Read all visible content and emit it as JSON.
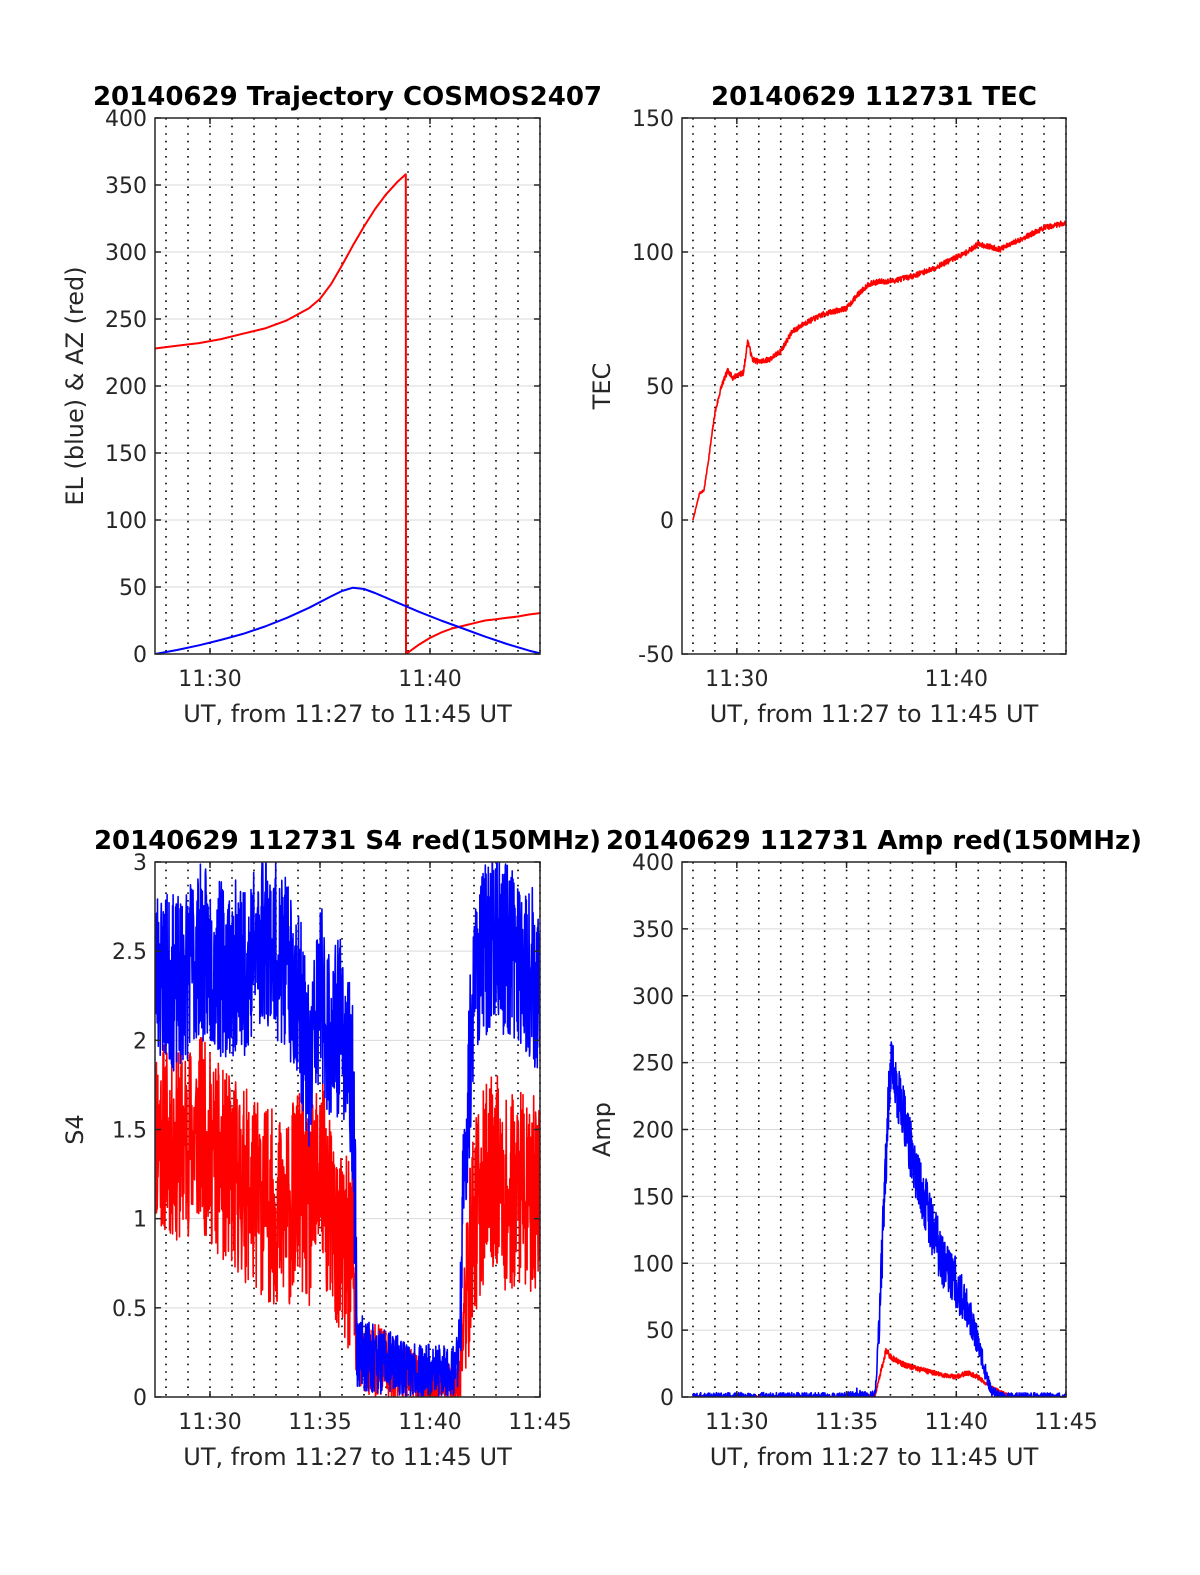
{
  "colors": {
    "red": "#ff0000",
    "blue": "#0000ff",
    "grid": "#d9d9d9",
    "axis": "#262626"
  },
  "chart_data": [
    {
      "id": "trajectory",
      "type": "line",
      "title": "20140629 Trajectory COSMOS2407",
      "xlabel": "UT, from 11:27 to 11:45 UT",
      "ylabel": "EL (blue) & AZ (red)",
      "xlim": [
        27.5,
        45
      ],
      "ylim": [
        0,
        400
      ],
      "yticks": [
        0,
        50,
        100,
        150,
        200,
        250,
        300,
        350,
        400
      ],
      "xticks": [
        {
          "v": 30,
          "label": "11:30"
        },
        {
          "v": 40,
          "label": "11:40"
        }
      ],
      "grid": true,
      "series": [
        {
          "color": "red",
          "x": [
            27.5,
            28.5,
            29.5,
            30.5,
            31.5,
            32.5,
            33.5,
            34.5,
            35.0,
            35.5,
            36.0,
            36.5,
            37.0,
            37.5,
            38.0,
            38.5,
            38.9,
            38.91,
            39.5,
            40.0,
            40.5,
            41.0,
            41.5,
            42.0,
            42.5,
            43.0,
            43.5,
            44.0,
            44.5,
            45.0
          ],
          "y": [
            228,
            230,
            232,
            235,
            239,
            243,
            249,
            258,
            265,
            276,
            290,
            305,
            319,
            332,
            343,
            352,
            358,
            0,
            7,
            12,
            16,
            19,
            21,
            23,
            25,
            26,
            27,
            28,
            29.5,
            30.5
          ]
        },
        {
          "color": "blue",
          "x": [
            27.5,
            28.5,
            29.5,
            30.5,
            31.5,
            32.5,
            33.5,
            34.5,
            35.5,
            36.0,
            36.5,
            37.0,
            37.5,
            38.5,
            39.5,
            40.5,
            41.5,
            42.5,
            43.5,
            44.5,
            45.0
          ],
          "y": [
            0,
            3,
            6.5,
            10.5,
            15,
            20.5,
            27,
            34.5,
            43,
            47,
            49.5,
            48.5,
            45.5,
            38.5,
            31.5,
            25,
            19,
            13,
            7.5,
            2.5,
            0.5
          ]
        }
      ]
    },
    {
      "id": "tec",
      "type": "line",
      "title": "20140629 112731 TEC",
      "xlabel": "UT, from 11:27 to 11:45 UT",
      "ylabel": "TEC",
      "xlim": [
        27.5,
        45
      ],
      "ylim": [
        -50,
        150
      ],
      "yticks": [
        -50,
        0,
        50,
        100,
        150
      ],
      "xticks": [
        {
          "v": 30,
          "label": "11:30"
        },
        {
          "v": 40,
          "label": "11:40"
        }
      ],
      "grid": true,
      "series": [
        {
          "color": "red",
          "noise": 1.0,
          "seed": 7,
          "x": [
            28.0,
            28.3,
            28.5,
            28.7,
            29.0,
            29.3,
            29.6,
            29.8,
            30.0,
            30.3,
            30.5,
            30.7,
            31.0,
            31.5,
            32.0,
            32.5,
            33.0,
            33.5,
            34.0,
            34.5,
            35.0,
            35.5,
            36.0,
            36.5,
            37.0,
            38.0,
            39.0,
            40.0,
            40.5,
            41.0,
            41.5,
            42.0,
            42.5,
            43.0,
            43.5,
            44.0,
            44.5,
            45.0
          ],
          "y": [
            0,
            10,
            11,
            22,
            40,
            50,
            56,
            53,
            54,
            55,
            67,
            60,
            59,
            60,
            63,
            70,
            73,
            75,
            77,
            78,
            79,
            84,
            88,
            89,
            89,
            91,
            94,
            98,
            100,
            103,
            102,
            101,
            103,
            105,
            107,
            109,
            110,
            111
          ]
        }
      ]
    },
    {
      "id": "s4",
      "type": "line",
      "title": "20140629 112731 S4 red(150MHz)",
      "xlabel": "UT, from 11:27 to 11:45 UT",
      "ylabel": "S4",
      "xlim": [
        27.5,
        45
      ],
      "ylim": [
        0,
        3
      ],
      "yticks": [
        0,
        0.5,
        1,
        1.5,
        2,
        2.5,
        3
      ],
      "ytick_labels": [
        "0",
        "0.5",
        "1",
        "1.5",
        "2",
        "2.5",
        "3"
      ],
      "xticks": [
        {
          "v": 30,
          "label": "11:30"
        },
        {
          "v": 35,
          "label": "11:35"
        },
        {
          "v": 40,
          "label": "11:40"
        },
        {
          "v": 45,
          "label": "11:45"
        }
      ],
      "grid": true,
      "series": [
        {
          "color": "red",
          "noise": 0.55,
          "seed": 11,
          "x": [
            27.5,
            28.5,
            29.5,
            30.5,
            31.5,
            32.5,
            33.5,
            34.0,
            34.5,
            35.0,
            35.5,
            36.0,
            36.5,
            36.7,
            37.0,
            37.5,
            38.0,
            38.5,
            39.0,
            39.5,
            40.0,
            40.5,
            41.0,
            41.3,
            41.6,
            42.0,
            42.5,
            43.0,
            43.5,
            44.0,
            44.5,
            45.0
          ],
          "y": [
            1.5,
            1.4,
            1.5,
            1.3,
            1.2,
            1.1,
            1.0,
            1.2,
            1.0,
            1.3,
            1.0,
            0.8,
            0.8,
            0.2,
            0.2,
            0.22,
            0.18,
            0.15,
            0.12,
            0.1,
            0.08,
            0.08,
            0.07,
            0.1,
            0.5,
            1.0,
            1.2,
            1.3,
            1.1,
            1.2,
            1.1,
            1.2
          ]
        },
        {
          "color": "blue",
          "noise": 0.5,
          "seed": 23,
          "x": [
            27.5,
            28.5,
            29.5,
            30.5,
            31.5,
            32.5,
            33.5,
            34.0,
            34.5,
            35.0,
            35.5,
            36.0,
            36.5,
            36.7,
            37.0,
            37.5,
            38.0,
            38.5,
            39.0,
            39.5,
            40.0,
            40.5,
            41.0,
            41.3,
            41.5,
            42.0,
            42.5,
            43.0,
            43.5,
            44.0,
            44.5,
            45.0
          ],
          "y": [
            2.4,
            2.3,
            2.5,
            2.4,
            2.4,
            2.6,
            2.4,
            2.3,
            1.8,
            2.3,
            2.0,
            2.1,
            1.7,
            0.25,
            0.25,
            0.22,
            0.2,
            0.18,
            0.15,
            0.14,
            0.15,
            0.14,
            0.15,
            0.2,
            1.0,
            2.4,
            2.5,
            2.6,
            2.5,
            2.5,
            2.4,
            2.3
          ]
        }
      ]
    },
    {
      "id": "amp",
      "type": "line",
      "title": "20140629 112731 Amp red(150MHz)",
      "xlabel": "UT, from 11:27 to 11:45 UT",
      "ylabel": "Amp",
      "xlim": [
        27.5,
        45
      ],
      "ylim": [
        0,
        400
      ],
      "yticks": [
        0,
        50,
        100,
        150,
        200,
        250,
        300,
        350,
        400
      ],
      "xticks": [
        {
          "v": 30,
          "label": "11:30"
        },
        {
          "v": 35,
          "label": "11:35"
        },
        {
          "v": 40,
          "label": "11:40"
        },
        {
          "v": 45,
          "label": "11:45"
        }
      ],
      "grid": true,
      "series": [
        {
          "color": "red",
          "noise": 6,
          "seed": 5,
          "x": [
            28.0,
            30.0,
            32.0,
            34.0,
            35.5,
            36.3,
            36.5,
            36.8,
            37.0,
            37.5,
            38.0,
            38.5,
            39.0,
            39.5,
            40.0,
            40.5,
            41.0,
            41.5,
            42.0,
            42.3,
            42.5,
            45.0
          ],
          "y": [
            0,
            0,
            0,
            0,
            0,
            1,
            15,
            35,
            30,
            25,
            22,
            20,
            18,
            16,
            15,
            18,
            15,
            8,
            4,
            2,
            0,
            0
          ]
        },
        {
          "color": "blue",
          "noise": 22,
          "seed": 3,
          "x": [
            28.0,
            30.0,
            32.0,
            34.0,
            35.0,
            35.5,
            36.0,
            36.3,
            36.5,
            36.8,
            37.0,
            37.3,
            37.6,
            38.0,
            38.5,
            39.0,
            39.5,
            40.0,
            40.5,
            41.0,
            41.3,
            41.6,
            42.0,
            45.0
          ],
          "y": [
            0,
            0,
            0,
            0,
            0,
            3,
            0,
            2,
            60,
            180,
            250,
            230,
            210,
            180,
            150,
            120,
            100,
            85,
            65,
            40,
            20,
            5,
            0,
            0
          ]
        }
      ]
    }
  ]
}
